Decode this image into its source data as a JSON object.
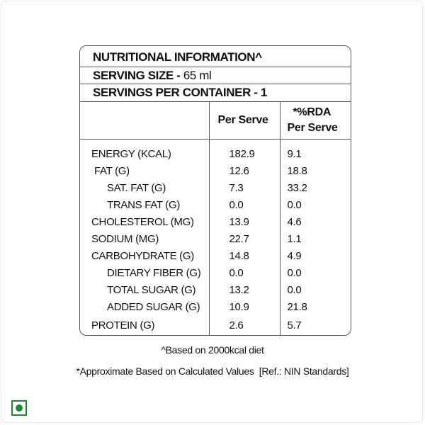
{
  "label": {
    "title": "NUTRITIONAL INFORMATION^",
    "serving_size_label": "SERVING SIZE - ",
    "serving_size_value": "65 ml",
    "servings_per_container": "SERVINGS PER CONTAINER - 1",
    "columns": {
      "per_serve": "Per Serve",
      "rda_line1": "*%RDA",
      "rda_line2": "Per Serve"
    },
    "rows": [
      {
        "name": "ENERGY (KCAL)",
        "per_serve": "182.9",
        "rda": "9.1"
      },
      {
        "name": "FAT (G)",
        "per_serve": "12.6",
        "rda": "18.8"
      },
      {
        "name": "SAT. FAT (G)",
        "per_serve": "7.3",
        "rda": "33.2"
      },
      {
        "name": "TRANS FAT (G)",
        "per_serve": "0.0",
        "rda": "0.0"
      },
      {
        "name": "CHOLESTEROL (MG)",
        "per_serve": "13.9",
        "rda": "4.6"
      },
      {
        "name": "SODIUM (MG)",
        "per_serve": "22.7",
        "rda": "1.1"
      },
      {
        "name": "CARBOHYDRATE (G)",
        "per_serve": "14.8",
        "rda": "4.9"
      },
      {
        "name": "DIETARY FIBER (G)",
        "per_serve": "0.0",
        "rda": "0.0"
      },
      {
        "name": "TOTAL SUGAR (G)",
        "per_serve": "13.2",
        "rda": "0.0"
      },
      {
        "name": "ADDED SUGAR (G)",
        "per_serve": "10.9",
        "rda": "21.8"
      },
      {
        "name": "PROTEIN (G)",
        "per_serve": "2.6",
        "rda": "5.7"
      }
    ]
  },
  "footnotes": {
    "diet": "^Based on 2000kcal diet",
    "approx": "*Approximate Based on Calculated Values  [Ref.: NIN Standards]"
  },
  "veg_mark": {
    "icon": "veg-symbol-icon",
    "color": "#1a8a2e"
  }
}
